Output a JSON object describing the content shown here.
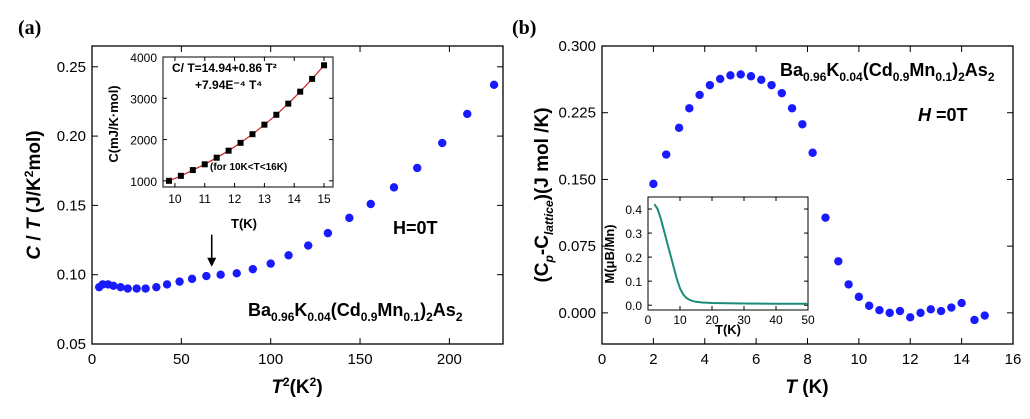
{
  "chart_data": [
    {
      "panel": "(a)",
      "type": "scatter",
      "xlabel": "T²(K²)",
      "ylabel": "C / T (J/K²mol)",
      "xlim": [
        0,
        230
      ],
      "ylim": [
        0.05,
        0.265
      ],
      "xticks": [
        "0",
        "50",
        "100",
        "150",
        "200"
      ],
      "yticks": [
        "0.05",
        "0.10",
        "0.15",
        "0.20",
        "0.25"
      ],
      "annotations": {
        "field": "H=0T",
        "compound": "Ba0.96K0.04(Cd0.9Mn0.1)2As2",
        "arrow_at_x": 67
      },
      "series": [
        {
          "name": "C/T",
          "color": "#1a1aff",
          "x": [
            4,
            6,
            9,
            12,
            16,
            20,
            25,
            30,
            36,
            42,
            49,
            56,
            64,
            72,
            81,
            90,
            100,
            110,
            121,
            132,
            144,
            156,
            169,
            182,
            196,
            210,
            225
          ],
          "y": [
            0.091,
            0.093,
            0.093,
            0.092,
            0.091,
            0.09,
            0.09,
            0.09,
            0.091,
            0.093,
            0.095,
            0.097,
            0.099,
            0.1,
            0.101,
            0.104,
            0.108,
            0.114,
            0.121,
            0.13,
            0.141,
            0.151,
            0.163,
            0.177,
            0.195,
            0.216,
            0.237
          ]
        }
      ],
      "inset": {
        "type": "scatter",
        "xlabel": "T(K)",
        "ylabel": "C(mJ/K·mol)",
        "xlim": [
          9.6,
          15.3
        ],
        "ylim": [
          850,
          4000
        ],
        "xticks": [
          "10",
          "11",
          "12",
          "13",
          "14",
          "15"
        ],
        "yticks": [
          "1000",
          "2000",
          "3000",
          "4000"
        ],
        "fit_line1": "C/ T=14.94+0.86 T²",
        "fit_line2": "+7.94E⁻⁴ T⁴",
        "range_note": "(for 10K<T<16K)",
        "fit_color": "#cc2222",
        "x": [
          9.8,
          10.2,
          10.6,
          11.0,
          11.4,
          11.8,
          12.2,
          12.6,
          13.0,
          13.4,
          13.8,
          14.2,
          14.6,
          15.0
        ],
        "y": [
          1000,
          1120,
          1260,
          1400,
          1560,
          1730,
          1920,
          2130,
          2360,
          2600,
          2870,
          3160,
          3470,
          3800
        ]
      }
    },
    {
      "panel": "(b)",
      "type": "scatter",
      "xlabel": "T (K)",
      "ylabel": "(Cp-Clattice)(J mol /K)",
      "xlim": [
        0,
        16
      ],
      "ylim": [
        -0.035,
        0.3
      ],
      "xticks": [
        "0",
        "2",
        "4",
        "6",
        "8",
        "10",
        "12",
        "14",
        "16"
      ],
      "yticks": [
        "0.000",
        "0.075",
        "0.150",
        "0.225",
        "0.300"
      ],
      "annotations": {
        "field": "H =0T",
        "compound": "Ba0.96K0.04(Cd0.9Mn0.1)2As2"
      },
      "series": [
        {
          "name": "Cp - Clattice",
          "color": "#1a1aff",
          "x": [
            2.0,
            2.5,
            3.0,
            3.4,
            3.8,
            4.2,
            4.6,
            5.0,
            5.4,
            5.8,
            6.2,
            6.6,
            7.0,
            7.4,
            7.8,
            8.2,
            8.7,
            9.2,
            9.6,
            10.0,
            10.4,
            10.8,
            11.2,
            11.6,
            12.0,
            12.4,
            12.8,
            13.2,
            13.6,
            14.0,
            14.5,
            14.9
          ],
          "y": [
            0.145,
            0.178,
            0.208,
            0.23,
            0.245,
            0.256,
            0.263,
            0.267,
            0.268,
            0.266,
            0.262,
            0.256,
            0.247,
            0.23,
            0.212,
            0.18,
            0.107,
            0.058,
            0.032,
            0.018,
            0.008,
            0.003,
            0.0,
            0.002,
            -0.005,
            0.0,
            0.004,
            0.002,
            0.006,
            0.011,
            -0.008,
            -0.003
          ]
        }
      ],
      "inset": {
        "type": "line",
        "xlabel": "T(K)",
        "ylabel": "M(μB/Mn)",
        "xlim": [
          0,
          50
        ],
        "ylim": [
          -0.02,
          0.45
        ],
        "xticks": [
          "0",
          "10",
          "20",
          "30",
          "40",
          "50"
        ],
        "yticks": [
          "0.0",
          "0.1",
          "0.2",
          "0.3",
          "0.4"
        ],
        "line_color": "#1a8c7a",
        "x": [
          2,
          3,
          4,
          5,
          6,
          7,
          8,
          9,
          10,
          11,
          12,
          13,
          14,
          15,
          17,
          20,
          25,
          30,
          40,
          50
        ],
        "y": [
          0.42,
          0.4,
          0.36,
          0.31,
          0.26,
          0.21,
          0.16,
          0.11,
          0.07,
          0.045,
          0.03,
          0.022,
          0.017,
          0.014,
          0.011,
          0.009,
          0.008,
          0.007,
          0.006,
          0.006
        ]
      }
    }
  ]
}
